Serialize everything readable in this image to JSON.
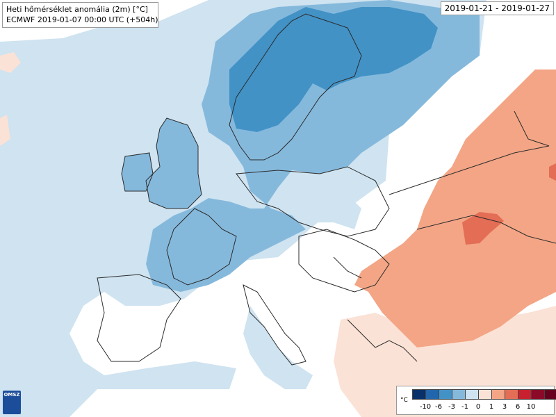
{
  "title": {
    "line1": "Heti hőmérséklet anomália (2m) [°C]",
    "line2": "ECMWF 2019-01-07 00:00 UTC (+504h)"
  },
  "date_range": "2019-01-21 - 2019-01-27",
  "logo": {
    "text": "OMSZ",
    "icon": "omsz-logo-icon"
  },
  "legend": {
    "unit": "°C",
    "colors": [
      "#08306b",
      "#2166ac",
      "#4292c6",
      "#85b9dc",
      "#cfe3f0",
      "#fbe2d6",
      "#f3a585",
      "#e36d55",
      "#c8202f",
      "#8b0a27",
      "#67001f"
    ],
    "ticks": [
      "-10",
      "-6",
      "-3",
      "-1",
      "0",
      "1",
      "3",
      "6",
      "10"
    ]
  },
  "colors": {
    "light_blue": "#cfe3f0",
    "mid_blue": "#85b9dc",
    "deep_blue": "#4292c6",
    "light_red": "#fbe2d6",
    "mid_red": "#f3a585",
    "deep_red": "#e36d55"
  }
}
